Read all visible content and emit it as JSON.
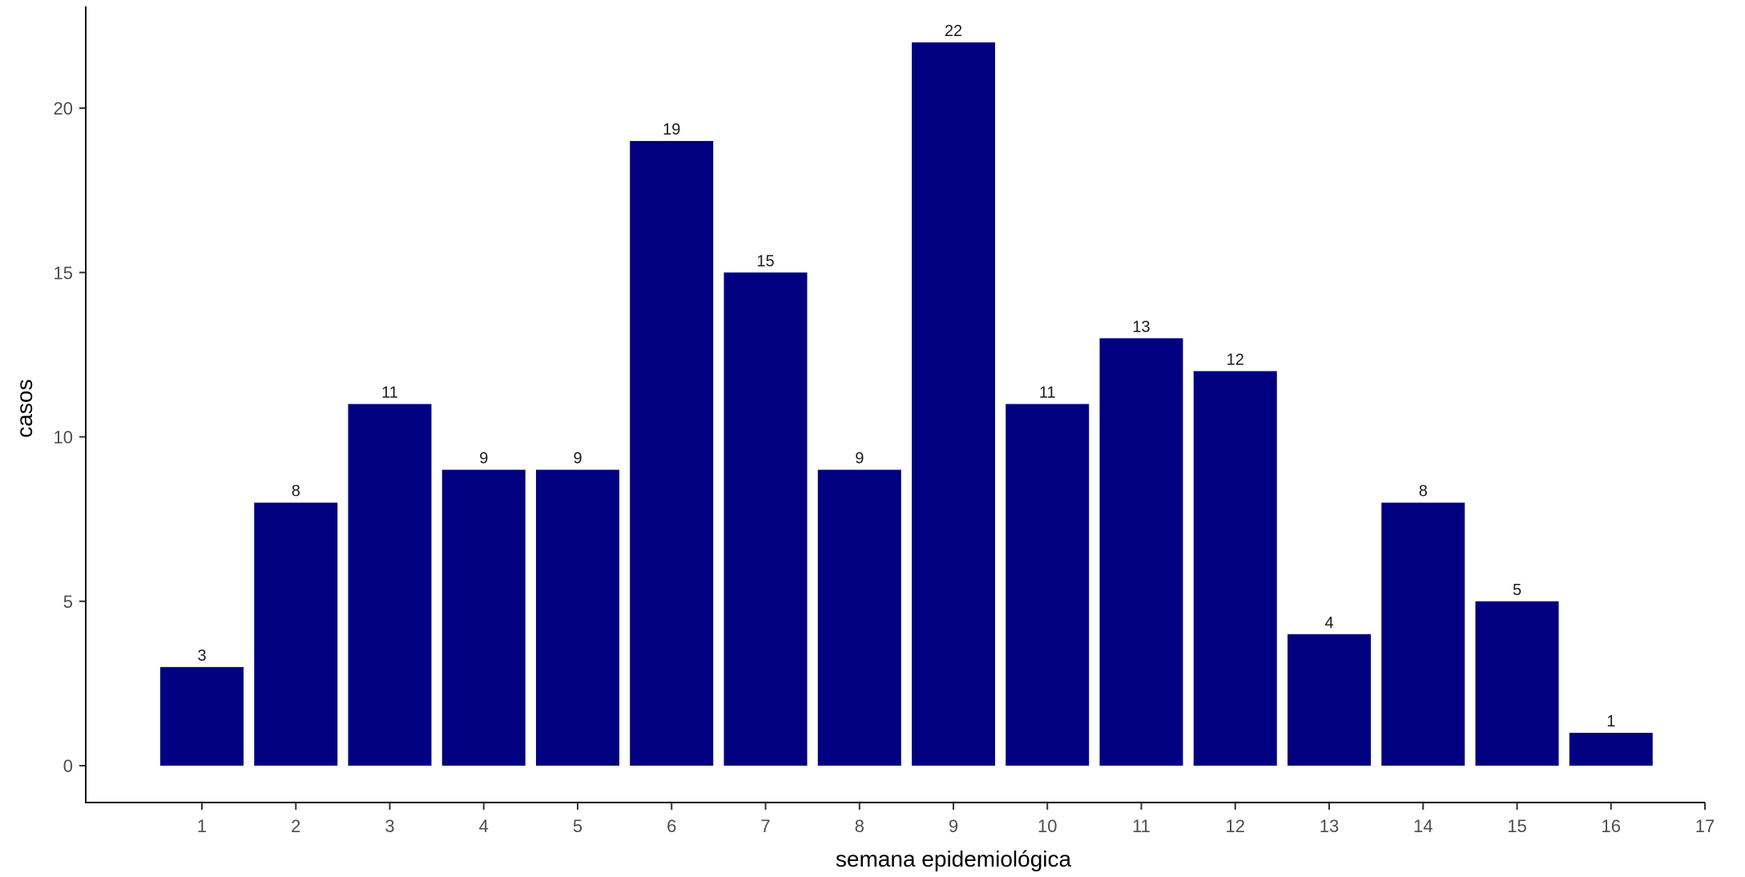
{
  "chart_data": {
    "type": "bar",
    "categories": [
      "1",
      "2",
      "3",
      "4",
      "5",
      "6",
      "7",
      "8",
      "9",
      "10",
      "11",
      "12",
      "13",
      "14",
      "15",
      "16"
    ],
    "values": [
      3,
      8,
      11,
      9,
      9,
      19,
      15,
      9,
      22,
      11,
      13,
      12,
      4,
      8,
      5,
      1
    ],
    "x_ticks": [
      "1",
      "2",
      "3",
      "4",
      "5",
      "6",
      "7",
      "8",
      "9",
      "10",
      "11",
      "12",
      "13",
      "14",
      "15",
      "16",
      "17"
    ],
    "y_ticks": [
      0,
      5,
      10,
      15,
      20
    ],
    "xlabel": "semana epidemiológica",
    "ylabel": "casos",
    "ylim": [
      0,
      22
    ],
    "xlim": [
      1,
      17
    ],
    "grid": false,
    "legend": "none",
    "bar_color": "#000080",
    "data_labels": true
  }
}
